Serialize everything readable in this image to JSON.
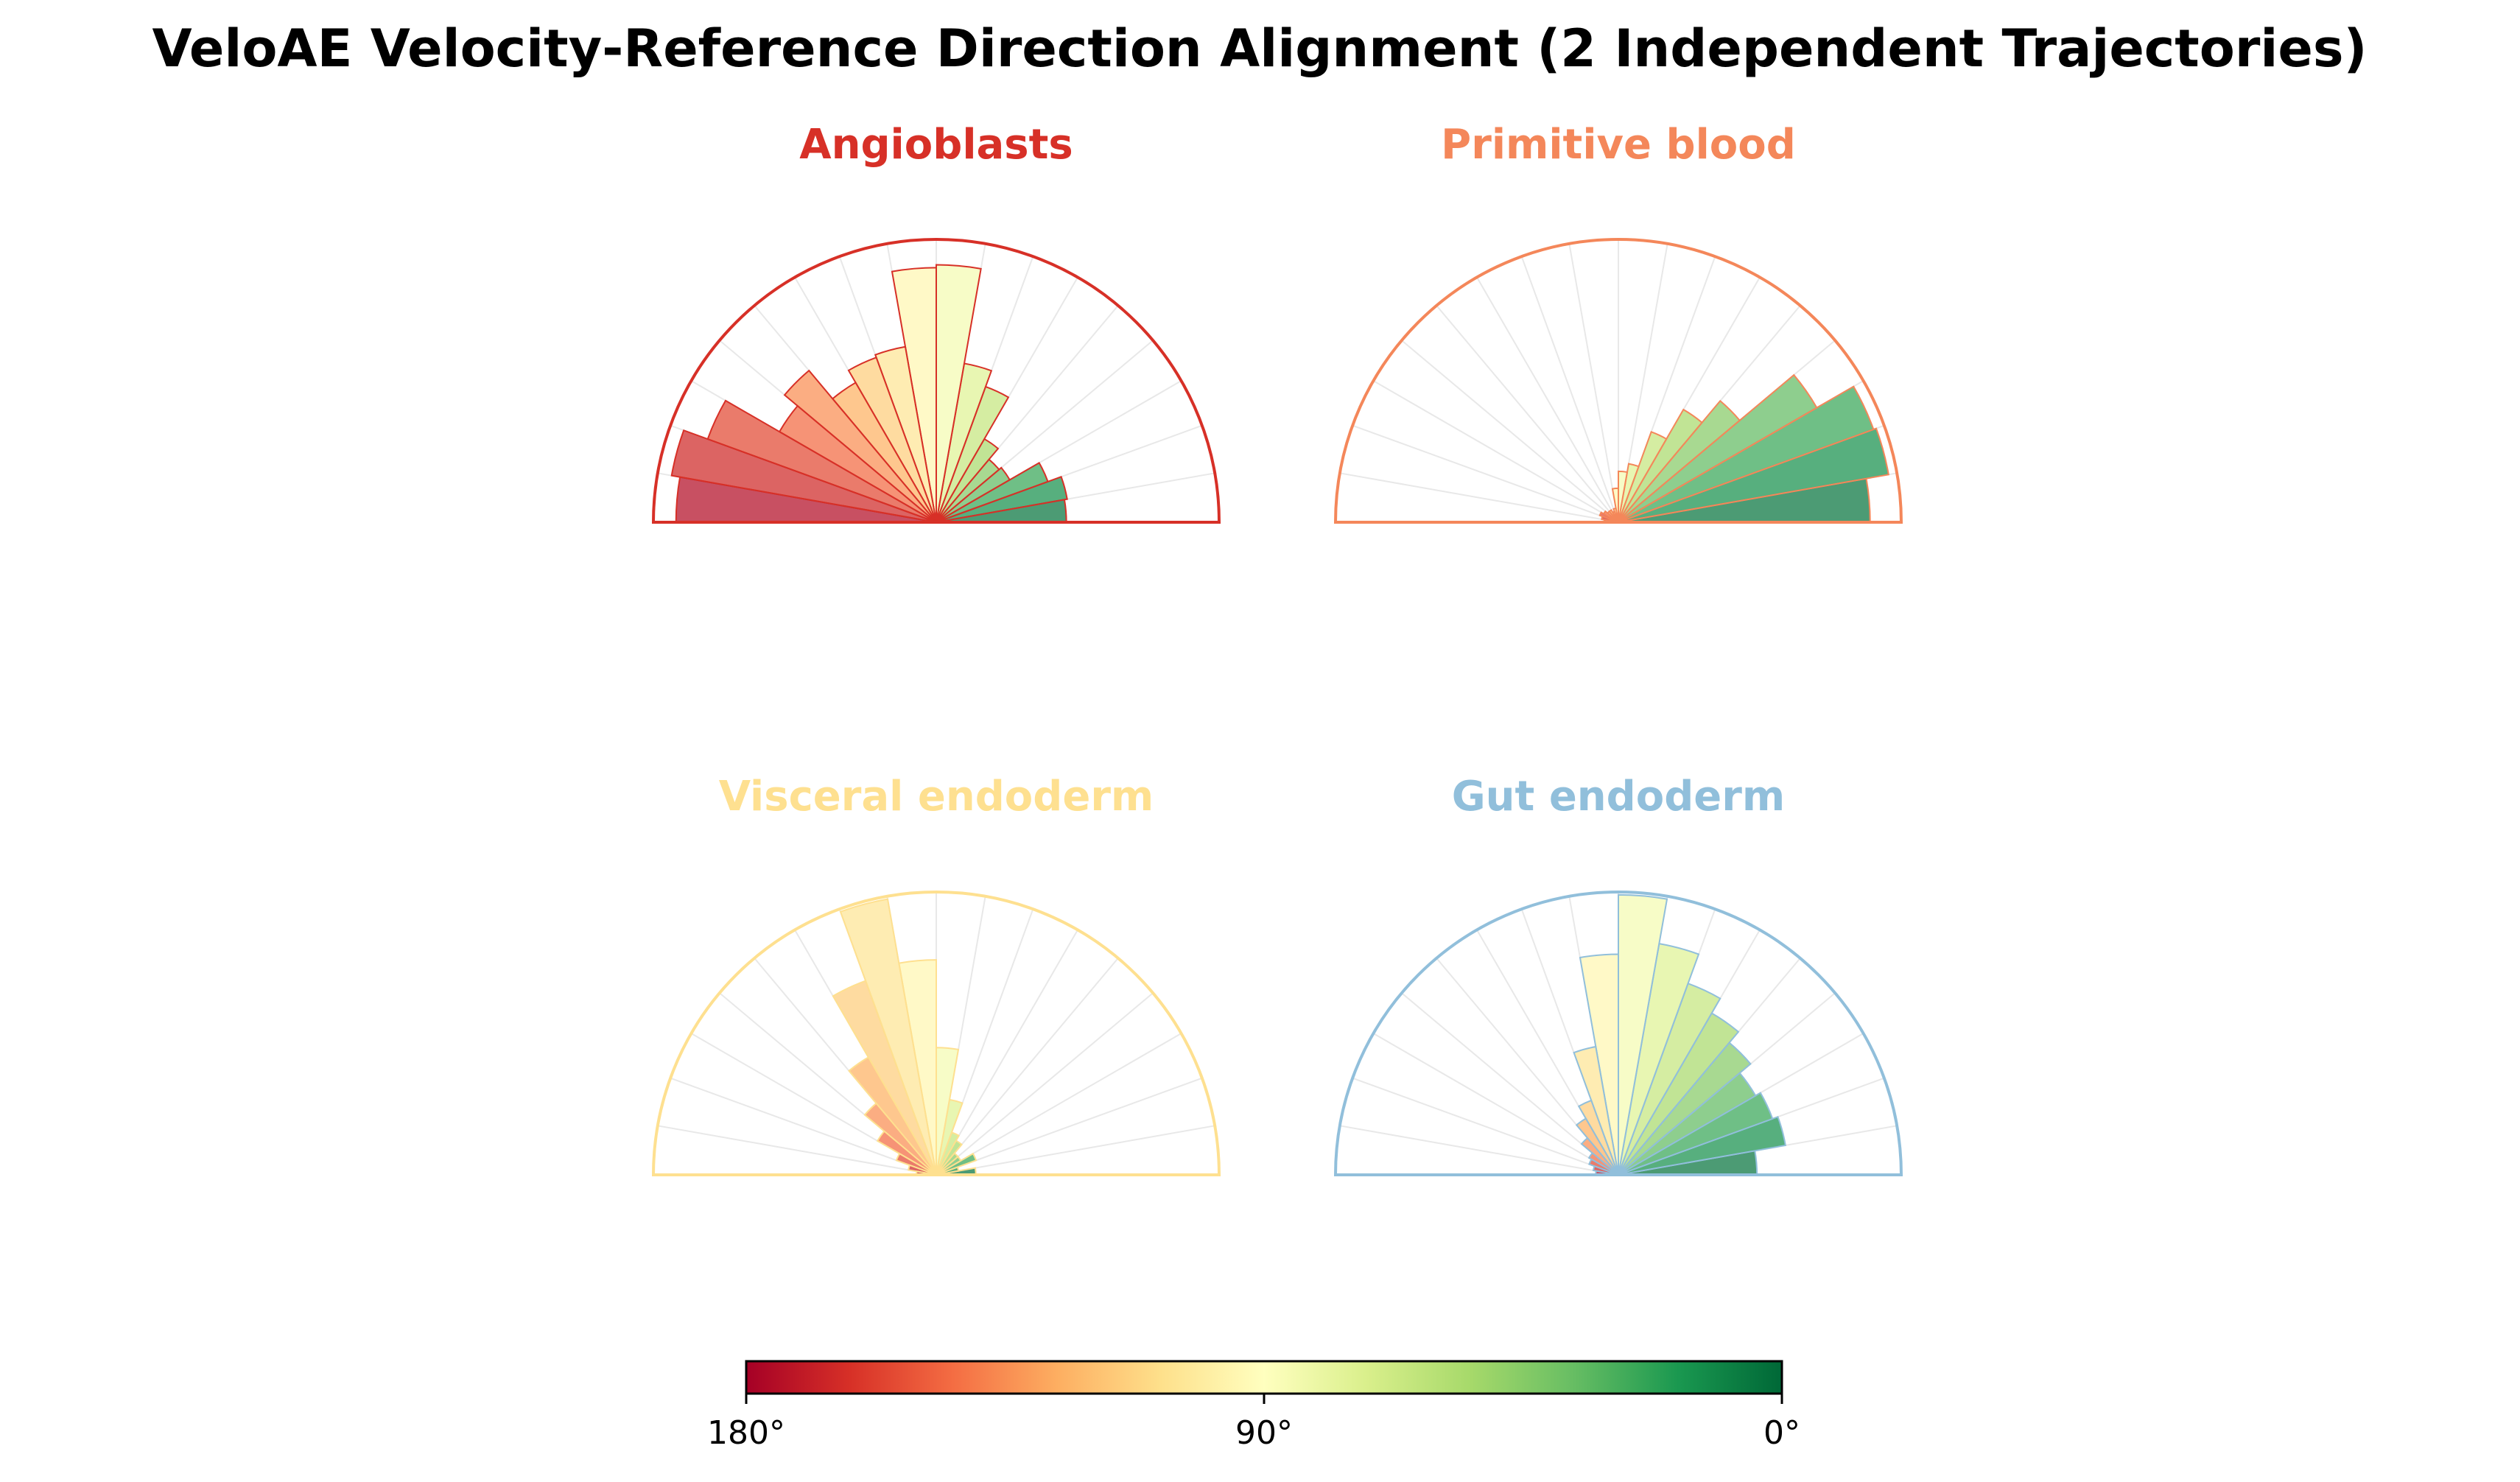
{
  "chart_data": {
    "type": "polar-histogram",
    "title": "VeloAE Velocity-Reference Direction Alignment (2 Independent Trajectories)",
    "angle_range_deg": [
      0,
      180
    ],
    "bin_width_deg": 10,
    "bin_centers_deg": [
      5,
      15,
      25,
      35,
      45,
      55,
      65,
      75,
      85,
      95,
      105,
      115,
      125,
      135,
      145,
      155,
      165,
      175
    ],
    "colormap": "RdYlGn_r (0°=green, 90°=yellow, 180°=red)",
    "panels": [
      {
        "name": "Angioblasts",
        "color": "#d73027",
        "values": [
          0.46,
          0.47,
          0.42,
          0.3,
          0.29,
          0.34,
          0.51,
          0.57,
          0.91,
          0.9,
          0.63,
          0.62,
          0.57,
          0.7,
          0.64,
          0.86,
          0.95,
          0.92
        ]
      },
      {
        "name": "Primitive blood",
        "color": "#f4875a",
        "values": [
          0.89,
          0.97,
          0.96,
          0.81,
          0.56,
          0.46,
          0.34,
          0.21,
          0.18,
          0.12,
          0.05,
          0.04,
          0.05,
          0.05,
          0.06,
          0.07,
          0.06,
          0.05
        ]
      },
      {
        "name": "Visceral endoderm",
        "color": "#fee090",
        "values": [
          0.14,
          0.08,
          0.15,
          0.1,
          0.1,
          0.14,
          0.16,
          0.27,
          0.45,
          0.76,
          0.99,
          0.73,
          0.48,
          0.33,
          0.24,
          0.15,
          0.1,
          0.07
        ]
      },
      {
        "name": "Gut endoderm",
        "color": "#91bfdb",
        "values": [
          0.49,
          0.6,
          0.58,
          0.56,
          0.61,
          0.66,
          0.72,
          0.83,
          0.99,
          0.78,
          0.46,
          0.28,
          0.23,
          0.17,
          0.12,
          0.11,
          0.09,
          0.08
        ]
      }
    ],
    "colorbar": {
      "ticks": [
        "180°",
        "90°",
        "0°"
      ],
      "tick_values": [
        180,
        90,
        0
      ]
    }
  }
}
